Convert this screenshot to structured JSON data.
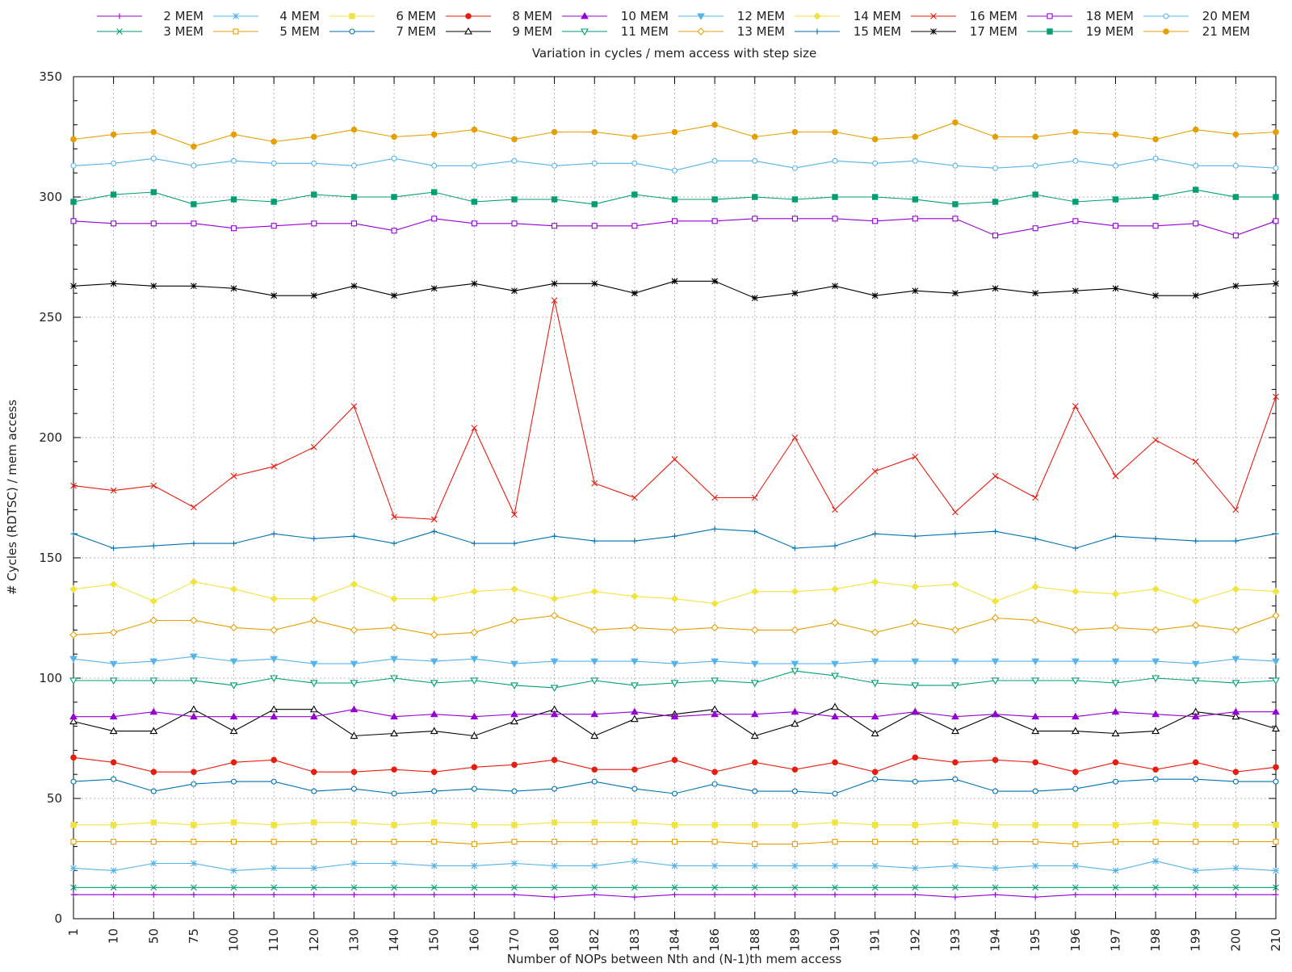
{
  "chart_data": {
    "type": "line",
    "title": "Variation in cycles / mem access with step size",
    "xlabel": "Number of NOPs between Nth and (N-1)th mem access",
    "ylabel": "# Cycles (RDTSC) / mem access",
    "ylim": [
      0,
      350
    ],
    "yticks": [
      "0",
      "50",
      "100",
      "150",
      "200",
      "250",
      "300",
      "350"
    ],
    "grid": true,
    "legend_position": "top",
    "categories": [
      "1",
      "10",
      "50",
      "75",
      "100",
      "110",
      "120",
      "130",
      "140",
      "150",
      "160",
      "170",
      "180",
      "182",
      "183",
      "184",
      "186",
      "188",
      "189",
      "190",
      "191",
      "192",
      "193",
      "194",
      "195",
      "196",
      "197",
      "198",
      "199",
      "200",
      "210"
    ],
    "series": [
      {
        "name": "2 MEM",
        "color": "#9400d3",
        "marker": "plus",
        "values": [
          10,
          10,
          10,
          10,
          10,
          10,
          10,
          10,
          10,
          10,
          10,
          10,
          9,
          10,
          9,
          10,
          10,
          10,
          10,
          10,
          10,
          10,
          9,
          10,
          9,
          10,
          10,
          10,
          10,
          10,
          10
        ]
      },
      {
        "name": "3 MEM",
        "color": "#009e73",
        "marker": "cross",
        "values": [
          13,
          13,
          13,
          13,
          13,
          13,
          13,
          13,
          13,
          13,
          13,
          13,
          13,
          13,
          13,
          13,
          13,
          13,
          13,
          13,
          13,
          13,
          13,
          13,
          13,
          13,
          13,
          13,
          13,
          13,
          13
        ]
      },
      {
        "name": "4 MEM",
        "color": "#56b4e9",
        "marker": "star",
        "values": [
          21,
          20,
          23,
          23,
          20,
          21,
          21,
          23,
          23,
          22,
          22,
          23,
          22,
          22,
          24,
          22,
          22,
          22,
          22,
          22,
          22,
          21,
          22,
          21,
          22,
          22,
          20,
          24,
          20,
          21,
          20
        ]
      },
      {
        "name": "5 MEM",
        "color": "#e69f00",
        "marker": "box",
        "values": [
          32,
          32,
          32,
          32,
          32,
          32,
          32,
          32,
          32,
          32,
          31,
          32,
          32,
          32,
          32,
          32,
          32,
          31,
          31,
          32,
          32,
          32,
          32,
          32,
          32,
          31,
          32,
          32,
          32,
          32,
          32
        ]
      },
      {
        "name": "6 MEM",
        "color": "#f0e442",
        "marker": "fbox",
        "values": [
          39,
          39,
          40,
          39,
          40,
          39,
          40,
          40,
          39,
          40,
          39,
          39,
          40,
          40,
          40,
          39,
          39,
          39,
          39,
          40,
          39,
          39,
          40,
          39,
          39,
          39,
          39,
          40,
          39,
          39,
          39
        ]
      },
      {
        "name": "7 MEM",
        "color": "#0072b2",
        "marker": "circle",
        "values": [
          57,
          58,
          53,
          56,
          57,
          57,
          53,
          54,
          52,
          53,
          54,
          53,
          54,
          57,
          54,
          52,
          56,
          53,
          53,
          52,
          58,
          57,
          58,
          53,
          53,
          54,
          57,
          58,
          58,
          57,
          57
        ]
      },
      {
        "name": "8 MEM",
        "color": "#e51e10",
        "marker": "fcircle",
        "values": [
          67,
          65,
          61,
          61,
          65,
          66,
          61,
          61,
          62,
          61,
          63,
          64,
          66,
          62,
          62,
          66,
          61,
          65,
          62,
          65,
          61,
          67,
          65,
          66,
          65,
          61,
          65,
          62,
          65,
          61,
          63
        ]
      },
      {
        "name": "9 MEM",
        "color": "#000000",
        "marker": "triangle",
        "values": [
          82,
          78,
          78,
          87,
          78,
          87,
          87,
          76,
          77,
          78,
          76,
          82,
          87,
          76,
          83,
          85,
          87,
          76,
          81,
          88,
          77,
          86,
          78,
          85,
          78,
          78,
          77,
          78,
          86,
          84,
          79
        ]
      },
      {
        "name": "10 MEM",
        "color": "#9400d3",
        "marker": "ftriangle",
        "values": [
          84,
          84,
          86,
          84,
          84,
          84,
          84,
          87,
          84,
          85,
          84,
          85,
          85,
          85,
          86,
          84,
          85,
          85,
          86,
          84,
          84,
          86,
          84,
          85,
          84,
          84,
          86,
          85,
          84,
          86,
          86
        ]
      },
      {
        "name": "11 MEM",
        "color": "#009e73",
        "marker": "itriangle",
        "values": [
          99,
          99,
          99,
          99,
          97,
          100,
          98,
          98,
          100,
          98,
          99,
          97,
          96,
          99,
          97,
          98,
          99,
          98,
          103,
          101,
          98,
          97,
          97,
          99,
          99,
          99,
          98,
          100,
          99,
          98,
          99
        ]
      },
      {
        "name": "12 MEM",
        "color": "#56b4e9",
        "marker": "fitriangle",
        "values": [
          108,
          106,
          107,
          109,
          107,
          108,
          106,
          106,
          108,
          107,
          108,
          106,
          107,
          107,
          107,
          106,
          107,
          106,
          106,
          106,
          107,
          107,
          107,
          107,
          107,
          107,
          107,
          107,
          106,
          108,
          107
        ]
      },
      {
        "name": "13 MEM",
        "color": "#e69f00",
        "marker": "diamond",
        "values": [
          118,
          119,
          124,
          124,
          121,
          120,
          124,
          120,
          121,
          118,
          119,
          124,
          126,
          120,
          121,
          120,
          121,
          120,
          120,
          123,
          119,
          123,
          120,
          125,
          124,
          120,
          121,
          120,
          122,
          120,
          126
        ]
      },
      {
        "name": "14 MEM",
        "color": "#f0e442",
        "marker": "fdiamond",
        "values": [
          137,
          139,
          132,
          140,
          137,
          133,
          133,
          139,
          133,
          133,
          136,
          137,
          133,
          136,
          134,
          133,
          131,
          136,
          136,
          137,
          140,
          138,
          139,
          132,
          138,
          136,
          135,
          137,
          132,
          137,
          136
        ]
      },
      {
        "name": "15 MEM",
        "color": "#0072b2",
        "marker": "plus",
        "values": [
          160,
          154,
          155,
          156,
          156,
          160,
          158,
          159,
          156,
          161,
          156,
          156,
          159,
          157,
          157,
          159,
          162,
          161,
          154,
          155,
          160,
          159,
          160,
          161,
          158,
          154,
          159,
          158,
          157,
          157,
          160
        ]
      },
      {
        "name": "16 MEM",
        "color": "#e51e10",
        "marker": "cross",
        "values": [
          180,
          178,
          180,
          171,
          184,
          188,
          196,
          213,
          167,
          166,
          204,
          168,
          257,
          181,
          175,
          191,
          175,
          175,
          200,
          170,
          186,
          192,
          169,
          184,
          175,
          213,
          184,
          199,
          190,
          170,
          217
        ]
      },
      {
        "name": "17 MEM",
        "color": "#000000",
        "marker": "star",
        "values": [
          263,
          264,
          263,
          263,
          262,
          259,
          259,
          263,
          259,
          262,
          264,
          261,
          264,
          264,
          260,
          265,
          265,
          258,
          260,
          263,
          259,
          261,
          260,
          262,
          260,
          261,
          262,
          259,
          259,
          263,
          264
        ]
      },
      {
        "name": "18 MEM",
        "color": "#9400d3",
        "marker": "box",
        "values": [
          290,
          289,
          289,
          289,
          287,
          288,
          289,
          289,
          286,
          291,
          289,
          289,
          288,
          288,
          288,
          290,
          290,
          291,
          291,
          291,
          290,
          291,
          291,
          284,
          287,
          290,
          288,
          288,
          289,
          284,
          290
        ]
      },
      {
        "name": "19 MEM",
        "color": "#009e73",
        "marker": "fbox",
        "values": [
          298,
          301,
          302,
          297,
          299,
          298,
          301,
          300,
          300,
          302,
          298,
          299,
          299,
          297,
          301,
          299,
          299,
          300,
          299,
          300,
          300,
          299,
          297,
          298,
          301,
          298,
          299,
          300,
          303,
          300,
          300
        ]
      },
      {
        "name": "20 MEM",
        "color": "#56b4e9",
        "marker": "circle",
        "values": [
          313,
          314,
          316,
          313,
          315,
          314,
          314,
          313,
          316,
          313,
          313,
          315,
          313,
          314,
          314,
          311,
          315,
          315,
          312,
          315,
          314,
          315,
          313,
          312,
          313,
          315,
          313,
          316,
          313,
          313,
          312
        ]
      },
      {
        "name": "21 MEM",
        "color": "#e69f00",
        "marker": "fcircle",
        "values": [
          324,
          326,
          327,
          321,
          326,
          323,
          325,
          328,
          325,
          326,
          328,
          324,
          327,
          327,
          325,
          327,
          330,
          325,
          327,
          327,
          324,
          325,
          331,
          325,
          325,
          327,
          326,
          324,
          328,
          326,
          327
        ]
      }
    ]
  }
}
